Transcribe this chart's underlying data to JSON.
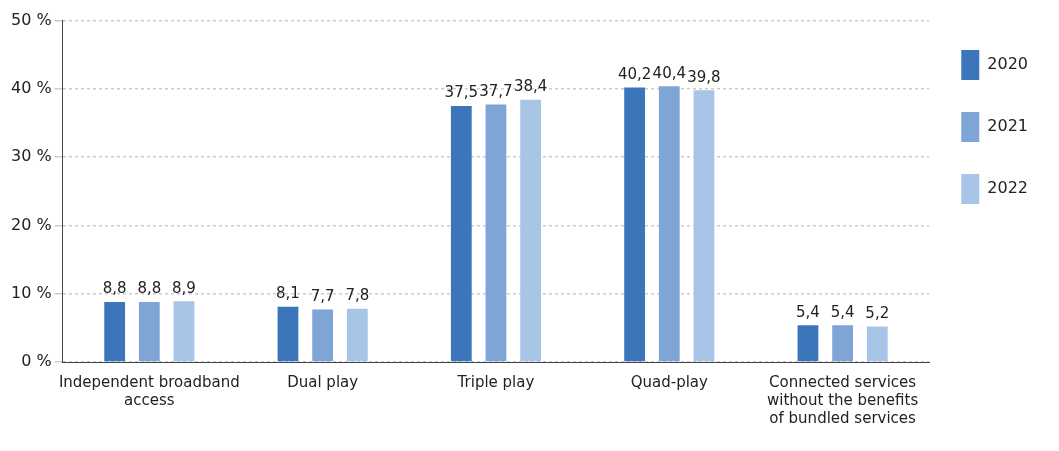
{
  "chart_data": {
    "type": "bar",
    "categories": [
      "Independent broadband access",
      "Dual play",
      "Triple play",
      "Quad-play",
      "Connected services without the benefits of bundled services"
    ],
    "series": [
      {
        "name": "2020",
        "color": "#3b76ba",
        "values": [
          8.8,
          8.1,
          37.5,
          40.2,
          5.4
        ],
        "value_labels": [
          "8,8",
          "8,1",
          "37,5",
          "40,2",
          "5,4"
        ]
      },
      {
        "name": "2021",
        "color": "#7fa4d6",
        "values": [
          8.8,
          7.7,
          37.7,
          40.4,
          5.4
        ],
        "value_labels": [
          "8,8",
          "7,7",
          "37,7",
          "40,4",
          "5,4"
        ]
      },
      {
        "name": "2022",
        "color": "#a8c4e6",
        "values": [
          8.9,
          7.8,
          38.4,
          39.8,
          5.2
        ],
        "value_labels": [
          "8,9",
          "7,8",
          "38,4",
          "39,8",
          "5,2"
        ]
      }
    ],
    "ylim": [
      0,
      50
    ],
    "yticks": [
      {
        "value": 0,
        "label": "0 %"
      },
      {
        "value": 10,
        "label": "10 %"
      },
      {
        "value": 20,
        "label": "20 %"
      },
      {
        "value": 30,
        "label": "30 %"
      },
      {
        "value": 40,
        "label": "40 %"
      },
      {
        "value": 50,
        "label": "50 %"
      }
    ],
    "grid": "y",
    "legend": "top right"
  }
}
